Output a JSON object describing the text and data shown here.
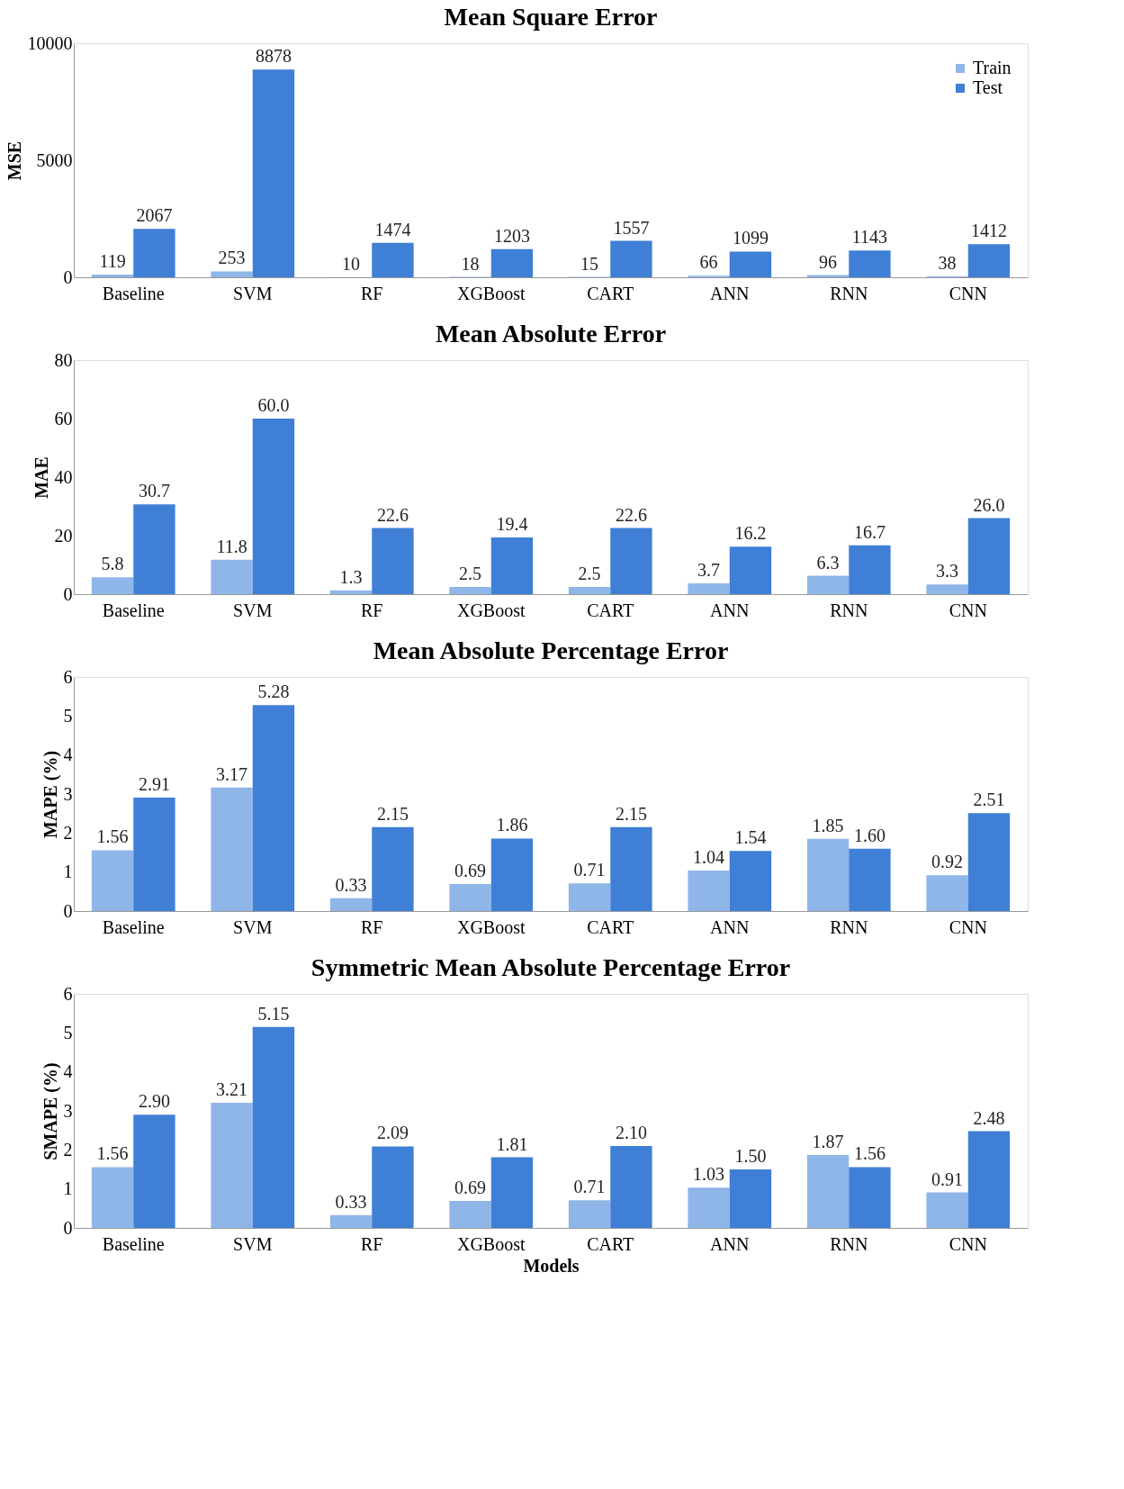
{
  "chart_data": [
    {
      "type": "bar",
      "title": "Mean Square Error",
      "ylabel": "MSE",
      "categories": [
        "Baseline",
        "SVM",
        "RF",
        "XGBoost",
        "CART",
        "ANN",
        "RNN",
        "CNN"
      ],
      "ylim": [
        0,
        10000
      ],
      "yticks": [
        0,
        5000,
        10000
      ],
      "grid": false,
      "legend": "top right",
      "series": [
        {
          "name": "Train",
          "color": "#8fb6e8",
          "values": [
            119,
            253,
            10,
            18,
            15,
            66,
            96,
            38
          ],
          "value_labels": [
            "119",
            "253",
            "10",
            "18",
            "15",
            "66",
            "96",
            "38"
          ]
        },
        {
          "name": "Test",
          "color": "#3f7fd6",
          "values": [
            2067,
            8878,
            1474,
            1203,
            1557,
            1099,
            1143,
            1412
          ],
          "value_labels": [
            "2067",
            "8878",
            "1474",
            "1203",
            "1557",
            "1099",
            "1143",
            "1412"
          ]
        }
      ]
    },
    {
      "type": "bar",
      "title": "Mean Absolute Error",
      "ylabel": "MAE",
      "categories": [
        "Baseline",
        "SVM",
        "RF",
        "XGBoost",
        "CART",
        "ANN",
        "RNN",
        "CNN"
      ],
      "ylim": [
        0,
        80
      ],
      "yticks": [
        0,
        20,
        40,
        60,
        80
      ],
      "grid": false,
      "series": [
        {
          "name": "Train",
          "color": "#8fb6e8",
          "values": [
            5.8,
            11.8,
            1.3,
            2.5,
            2.5,
            3.7,
            6.3,
            3.3
          ],
          "value_labels": [
            "5.8",
            "11.8",
            "1.3",
            "2.5",
            "2.5",
            "3.7",
            "6.3",
            "3.3"
          ]
        },
        {
          "name": "Test",
          "color": "#3f7fd6",
          "values": [
            30.7,
            60.0,
            22.6,
            19.4,
            22.6,
            16.2,
            16.7,
            26.0
          ],
          "value_labels": [
            "30.7",
            "60.0",
            "22.6",
            "19.4",
            "22.6",
            "16.2",
            "16.7",
            "26.0"
          ]
        }
      ]
    },
    {
      "type": "bar",
      "title": "Mean Absolute Percentage Error",
      "ylabel": "MAPE (%)",
      "categories": [
        "Baseline",
        "SVM",
        "RF",
        "XGBoost",
        "CART",
        "ANN",
        "RNN",
        "CNN"
      ],
      "ylim": [
        0,
        6
      ],
      "yticks": [
        0,
        1,
        2,
        3,
        4,
        5,
        6
      ],
      "grid": false,
      "series": [
        {
          "name": "Train",
          "color": "#8fb6e8",
          "values": [
            1.56,
            3.17,
            0.33,
            0.69,
            0.71,
            1.04,
            1.85,
            0.92
          ],
          "value_labels": [
            "1.56",
            "3.17",
            "0.33",
            "0.69",
            "0.71",
            "1.04",
            "1.85",
            "0.92"
          ]
        },
        {
          "name": "Test",
          "color": "#3f7fd6",
          "values": [
            2.91,
            5.28,
            2.15,
            1.86,
            2.15,
            1.54,
            1.6,
            2.51
          ],
          "value_labels": [
            "2.91",
            "5.28",
            "2.15",
            "1.86",
            "2.15",
            "1.54",
            "1.60",
            "2.51"
          ]
        }
      ]
    },
    {
      "type": "bar",
      "title": "Symmetric Mean Absolute Percentage Error",
      "ylabel": "SMAPE (%)",
      "xlabel": "Models",
      "categories": [
        "Baseline",
        "SVM",
        "RF",
        "XGBoost",
        "CART",
        "ANN",
        "RNN",
        "CNN"
      ],
      "ylim": [
        0,
        6
      ],
      "yticks": [
        0,
        1,
        2,
        3,
        4,
        5,
        6
      ],
      "grid": false,
      "series": [
        {
          "name": "Train",
          "color": "#8fb6e8",
          "values": [
            1.56,
            3.21,
            0.33,
            0.69,
            0.71,
            1.03,
            1.87,
            0.91
          ],
          "value_labels": [
            "1.56",
            "3.21",
            "0.33",
            "0.69",
            "0.71",
            "1.03",
            "1.87",
            "0.91"
          ]
        },
        {
          "name": "Test",
          "color": "#3f7fd6",
          "values": [
            2.9,
            5.15,
            2.09,
            1.81,
            2.1,
            1.5,
            1.56,
            2.48
          ],
          "value_labels": [
            "2.90",
            "5.15",
            "2.09",
            "1.81",
            "2.10",
            "1.50",
            "1.56",
            "2.48"
          ]
        }
      ]
    }
  ]
}
